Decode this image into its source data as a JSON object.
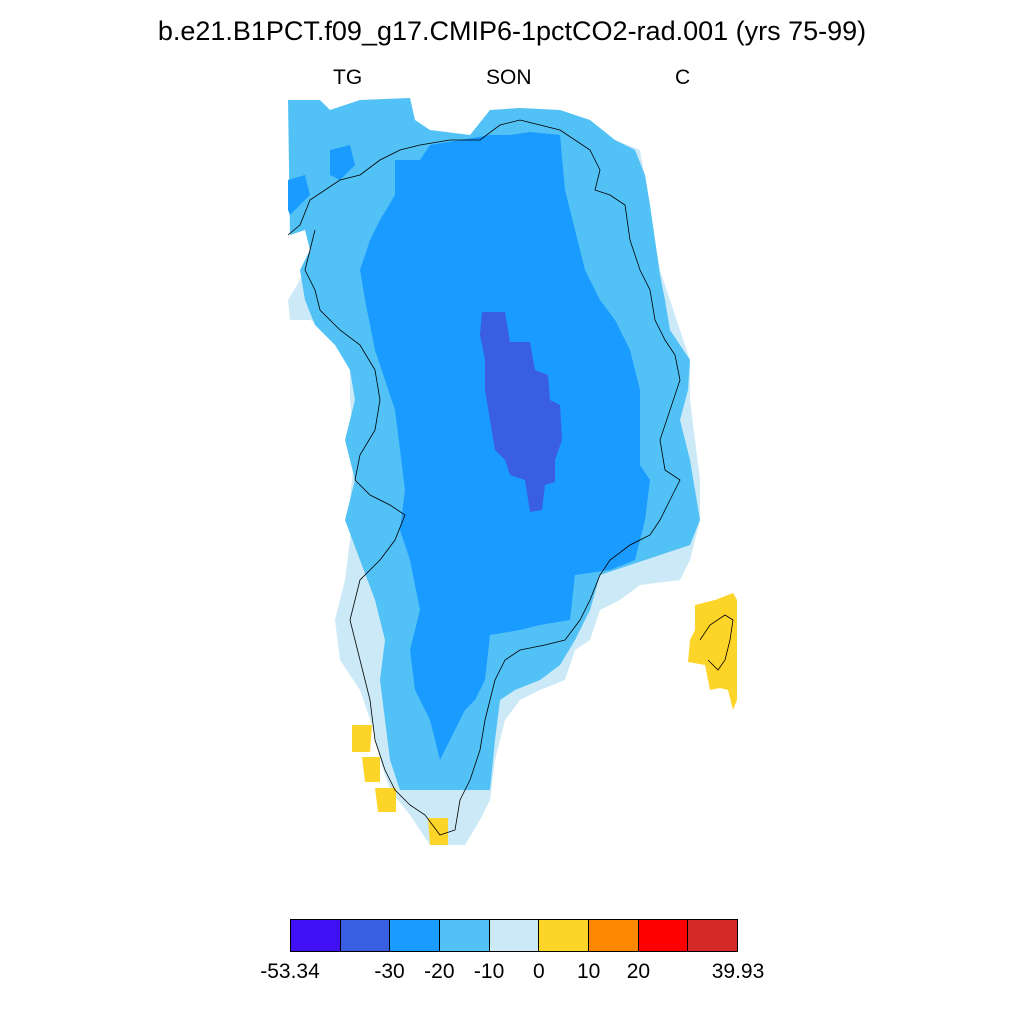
{
  "title": "b.e21.B1PCT.f09_g17.CMIP6-1pctCO2-rad.001 (yrs 75-99)",
  "subtitles": {
    "left": "TG",
    "center": "SON",
    "right": "C"
  },
  "colorbar": {
    "colors": [
      "#4210f5",
      "#3a5ee0",
      "#1a9bff",
      "#52c1f5",
      "#cbe9f7",
      "#fdd428",
      "#fd8800",
      "#fe0000",
      "#d52a2a"
    ],
    "labels": [
      "-53.34",
      "-30",
      "-20",
      "-10",
      "0",
      "10",
      "20",
      "39.93"
    ]
  },
  "map": {
    "region": "Greenland",
    "field": "TG",
    "season": "SON",
    "units": "C"
  }
}
